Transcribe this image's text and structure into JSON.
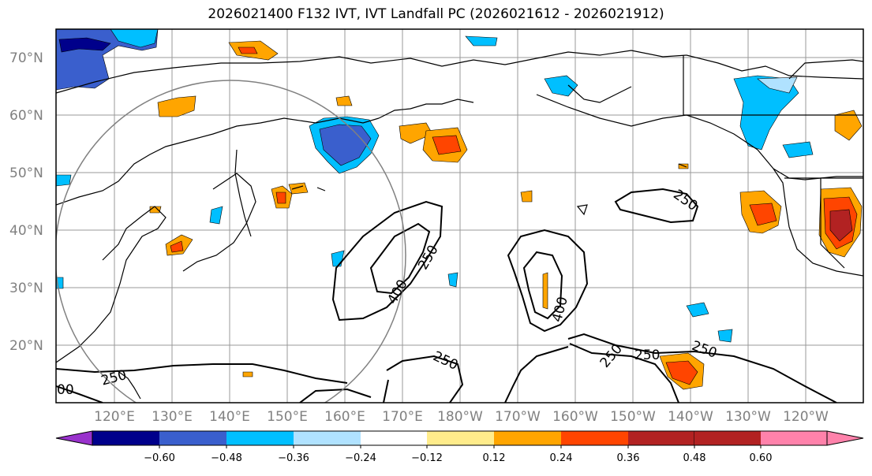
{
  "title": "2026021400 F132 IVT, IVT Landfall PC (2026021612 - 2026021912)",
  "latitude_labels": [
    "70°N",
    "60°N",
    "50°N",
    "40°N",
    "30°N",
    "20°N"
  ],
  "longitude_labels": [
    "120°E",
    "130°E",
    "140°E",
    "150°E",
    "160°E",
    "170°E",
    "180°W",
    "170°W",
    "160°W",
    "150°W",
    "140°W",
    "130°W",
    "120°W"
  ],
  "contour_labels": [
    "250",
    "250",
    "400",
    "250",
    "400",
    "250",
    "250",
    "250",
    "250",
    "00"
  ],
  "colorbar": {
    "ticks": [
      "−0.60",
      "−0.48",
      "−0.36",
      "−0.24",
      "−0.12",
      "0.12",
      "0.24",
      "0.36",
      "0.48",
      "0.60"
    ],
    "colors": [
      "#9932CC",
      "#00008B",
      "#3A5FCD",
      "#00BFFF",
      "#B0E2FF",
      "#FFFFFF",
      "#FFEC8B",
      "#FFA500",
      "#FF4500",
      "#B22222",
      "#FF82AB"
    ]
  },
  "colors": {
    "dark_blue": "#00008B",
    "blue": "#3A5FCD",
    "cyan": "#00BFFF",
    "light_blue": "#B0E2FF",
    "yellow": "#FFEC8B",
    "orange": "#FFA500",
    "red_orange": "#FF4500",
    "dark_red": "#B22222",
    "grid": "#999999",
    "circle": "#808080"
  }
}
